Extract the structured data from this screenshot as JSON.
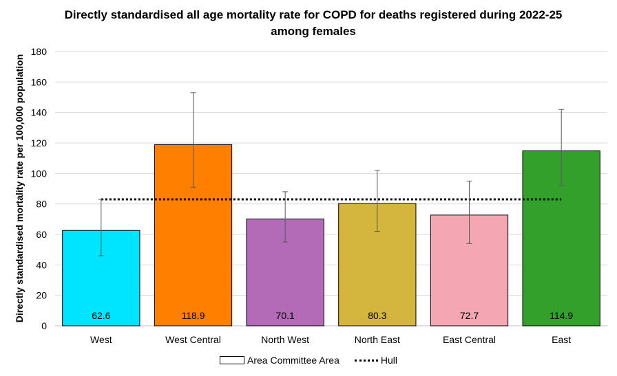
{
  "chart_data": {
    "type": "bar",
    "title": "Directly standardised all age mortality rate for COPD for deaths registered during 2022-25 among females",
    "ylabel": "Directly standardised mortality rate per 100,000 population",
    "xlabel": "",
    "ylim": [
      0,
      180
    ],
    "yticks": [
      0,
      20,
      40,
      60,
      80,
      100,
      120,
      140,
      160,
      180
    ],
    "grid": true,
    "categories": [
      "West",
      "West Central",
      "North West",
      "North East",
      "East Central",
      "East"
    ],
    "values": [
      62.6,
      118.9,
      70.1,
      80.3,
      72.7,
      114.9
    ],
    "value_labels": [
      "62.6",
      "118.9",
      "70.1",
      "80.3",
      "72.7",
      "114.9"
    ],
    "error_low": [
      46,
      91,
      55,
      62,
      54,
      92
    ],
    "error_high": [
      83,
      153,
      88,
      102,
      95,
      142
    ],
    "bar_colors": [
      "#00e5ff",
      "#ff8000",
      "#b36bb8",
      "#d4b53d",
      "#f4a6b2",
      "#33a02c"
    ],
    "reference_line": {
      "name": "Hull",
      "value": 83
    },
    "legend": {
      "position": "bottom",
      "entries": [
        {
          "label": "Area Committee Area",
          "style": "box"
        },
        {
          "label": "Hull",
          "style": "dotted-line"
        }
      ]
    }
  }
}
